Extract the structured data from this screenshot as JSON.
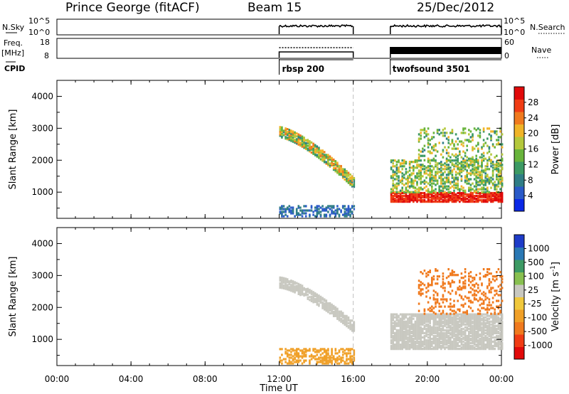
{
  "header": {
    "station": "Prince George (fitACF)",
    "beam": "Beam 15",
    "date": "25/Dec/2012"
  },
  "top_panels": {
    "nsky_label": "N.Sky",
    "nsky_ticks": [
      "10^5",
      "10^0"
    ],
    "nsearch_label": "N.Search",
    "freq_label_1": "Freq.",
    "freq_label_2": "[MHz]",
    "freq_ticks": [
      "18",
      "8"
    ],
    "nave_ticks": [
      "60",
      "0"
    ],
    "nave_label": "Nave",
    "cpid_label": "CPID",
    "cpid_entries": [
      {
        "label": "rbsp 200",
        "start_hour": 12,
        "end_hour": 16
      },
      {
        "label": "twofsound 3501",
        "start_hour": 18,
        "end_hour": 24
      }
    ]
  },
  "axes": {
    "ylabel": "Slant Range [km]",
    "yticks": [
      "4000",
      "3000",
      "2000",
      "1000"
    ],
    "ylim": [
      180,
      4500
    ],
    "xlabel": "Time UT",
    "xticks": [
      "00:00",
      "04:00",
      "08:00",
      "12:00",
      "16:00",
      "20:00",
      "00:00"
    ],
    "xlim_hours": [
      0,
      24
    ]
  },
  "colorbars": {
    "power": {
      "label": "Power [dB]",
      "ticks": [
        "28",
        "24",
        "20",
        "16",
        "12",
        "8",
        "4"
      ],
      "colors_low_to_high": [
        "#0a28e6",
        "#2a5ac8",
        "#2f7d86",
        "#3c9a64",
        "#68b43c",
        "#b4c83c",
        "#f0b428",
        "#f07a1e",
        "#f03c14",
        "#e10a0a"
      ]
    },
    "velocity": {
      "label": "Velocity [m s",
      "label_sup": "-1",
      "label_end": "]",
      "ticks": [
        "1000",
        "500",
        "100",
        "25",
        "-25",
        "-100",
        "-500",
        "-1000"
      ],
      "colors_high_to_low": [
        "#1e3cc8",
        "#2a78b4",
        "#3c9a64",
        "#88c050",
        "#c8c8c0",
        "#f0c83c",
        "#f0a028",
        "#f07a1e",
        "#f03c14",
        "#e10a0a"
      ]
    }
  },
  "chart_data": [
    {
      "type": "heatmap",
      "title": "",
      "quantity": "Power [dB]",
      "xlabel": "Time UT",
      "ylabel": "Slant Range [km]",
      "x_range_hours": [
        0,
        24
      ],
      "y_range_km": [
        180,
        4500
      ],
      "features": [
        {
          "time_hours": [
            12.0,
            16.0
          ],
          "range_km": [
            2900,
            1300
          ],
          "kind": "descending echo band",
          "power_db": [
            8,
            24
          ]
        },
        {
          "time_hours": [
            12.0,
            16.0
          ],
          "range_km": [
            200,
            600
          ],
          "kind": "near-range scatter",
          "power_db": [
            4,
            8
          ]
        },
        {
          "time_hours": [
            18.0,
            24.0
          ],
          "range_km": [
            700,
            1000
          ],
          "kind": "strong band",
          "power_db": [
            24,
            30
          ]
        },
        {
          "time_hours": [
            18.0,
            24.0
          ],
          "range_km": [
            1000,
            2000
          ],
          "kind": "mixed scatter",
          "power_db": [
            8,
            20
          ]
        },
        {
          "time_hours": [
            19.5,
            24.0
          ],
          "range_km": [
            2000,
            3000
          ],
          "kind": "patchy echoes",
          "power_db": [
            8,
            20
          ]
        }
      ]
    },
    {
      "type": "heatmap",
      "title": "",
      "quantity": "Velocity [m s-1]",
      "xlabel": "Time UT",
      "ylabel": "Slant Range [km]",
      "x_range_hours": [
        0,
        24
      ],
      "y_range_km": [
        180,
        4500
      ],
      "features": [
        {
          "time_hours": [
            12.0,
            16.0
          ],
          "range_km": [
            2800,
            1400
          ],
          "kind": "descending band",
          "velocity_ms": [
            -25,
            25
          ]
        },
        {
          "time_hours": [
            12.0,
            16.0
          ],
          "range_km": [
            200,
            700
          ],
          "kind": "near-range scatter",
          "velocity_ms": [
            -100,
            -25
          ]
        },
        {
          "time_hours": [
            18.0,
            24.0
          ],
          "range_km": [
            700,
            1800
          ],
          "kind": "ground scatter",
          "velocity_ms": [
            -25,
            25
          ]
        },
        {
          "time_hours": [
            19.5,
            24.0
          ],
          "range_km": [
            1800,
            3200
          ],
          "kind": "patchy echoes",
          "velocity_ms": [
            -500,
            -100
          ]
        }
      ]
    }
  ]
}
